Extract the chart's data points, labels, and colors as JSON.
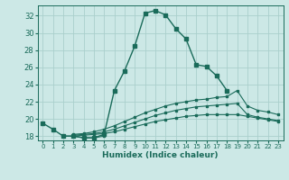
{
  "xlabel": "Humidex (Indice chaleur)",
  "bg_color": "#cce8e6",
  "grid_color": "#aacfcc",
  "line_color": "#1a6b5a",
  "xlim": [
    -0.5,
    23.5
  ],
  "ylim": [
    17.5,
    33.2
  ],
  "xticks": [
    0,
    1,
    2,
    3,
    4,
    5,
    6,
    7,
    8,
    9,
    10,
    11,
    12,
    13,
    14,
    15,
    16,
    17,
    18,
    19,
    20,
    21,
    22,
    23
  ],
  "yticks": [
    18,
    20,
    22,
    24,
    26,
    28,
    30,
    32
  ],
  "lines": [
    {
      "x": [
        0,
        1,
        2,
        3,
        4,
        5,
        6,
        7,
        8,
        9,
        10,
        11,
        12,
        13,
        14,
        15,
        16,
        17,
        18,
        19,
        20,
        21,
        22,
        23
      ],
      "y": [
        19.5,
        18.8,
        18.0,
        18.0,
        17.8,
        17.8,
        18.2,
        23.3,
        25.6,
        28.5,
        32.3,
        32.6,
        32.1,
        30.5,
        29.3,
        26.3,
        26.1,
        25.0,
        23.3,
        null,
        null,
        null,
        null,
        null
      ]
    },
    {
      "x": [
        2,
        3,
        4,
        5,
        6
      ],
      "y": [
        18.0,
        18.0,
        17.8,
        17.8,
        18.0
      ]
    },
    {
      "x": [
        3,
        4,
        5,
        6,
        7,
        8,
        9,
        10,
        11,
        12,
        13,
        14,
        15,
        16,
        17,
        18,
        19,
        20,
        21,
        22,
        23
      ],
      "y": [
        18.2,
        18.3,
        18.5,
        18.8,
        19.2,
        19.7,
        20.2,
        20.7,
        21.1,
        21.5,
        21.8,
        22.0,
        22.2,
        22.3,
        22.5,
        22.6,
        23.3,
        21.5,
        21.0,
        20.8,
        20.5
      ]
    },
    {
      "x": [
        3,
        4,
        5,
        6,
        7,
        8,
        9,
        10,
        11,
        12,
        13,
        14,
        15,
        16,
        17,
        18,
        19,
        20,
        21,
        22,
        23
      ],
      "y": [
        18.1,
        18.2,
        18.3,
        18.5,
        18.8,
        19.2,
        19.6,
        20.0,
        20.4,
        20.7,
        21.0,
        21.2,
        21.4,
        21.5,
        21.6,
        21.7,
        21.8,
        20.5,
        20.2,
        20.0,
        19.8
      ]
    },
    {
      "x": [
        3,
        4,
        5,
        6,
        7,
        8,
        9,
        10,
        11,
        12,
        13,
        14,
        15,
        16,
        17,
        18,
        19,
        20,
        21,
        22,
        23
      ],
      "y": [
        18.0,
        18.1,
        18.2,
        18.3,
        18.5,
        18.8,
        19.1,
        19.4,
        19.7,
        19.9,
        20.1,
        20.3,
        20.4,
        20.5,
        20.5,
        20.5,
        20.5,
        20.3,
        20.1,
        19.9,
        19.7
      ]
    }
  ]
}
